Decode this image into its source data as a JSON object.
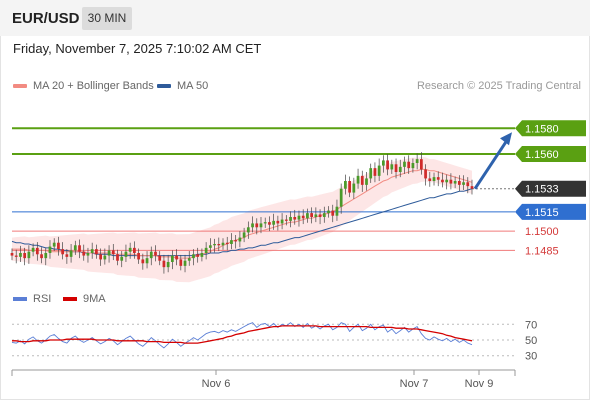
{
  "header": {
    "symbol": "EUR/USD",
    "timeframe": "30 MIN",
    "datetime": "Friday, November 7, 2025 7:10:02 AM CET",
    "credit": "Research © 2025 Trading Central"
  },
  "legend": {
    "ma20": {
      "label": "MA 20 + Bollinger Bands",
      "color": "#f28b82"
    },
    "ma50": {
      "label": "MA 50",
      "color": "#2e5b9a"
    }
  },
  "rsi_legend": {
    "rsi": {
      "label": "RSI",
      "color": "#5b7fd6"
    },
    "ma9": {
      "label": "9MA",
      "color": "#d40000"
    }
  },
  "colors": {
    "resistance": "#5aa012",
    "support_pivot": "#2f6fd0",
    "support": "#f07a7a",
    "last_price": "#333333",
    "arrow": "#2e62ad",
    "candle_up": "#4a9a2a",
    "candle_down": "#d02a2a",
    "band_fill": "#fde3e3"
  },
  "chart_data": [
    {
      "type": "candlestick",
      "title": "EUR/USD",
      "timeframe": "30 MIN",
      "x_ticks": [
        "Nov 6",
        "Nov 7",
        "Nov 9"
      ],
      "ylim": [
        1.1462,
        1.1602
      ],
      "levels": [
        {
          "value": 1.158,
          "label": "1.1580",
          "kind": "resistance"
        },
        {
          "value": 1.156,
          "label": "1.1560",
          "kind": "resistance"
        },
        {
          "value": 1.1533,
          "label": "1.1533",
          "kind": "last_price"
        },
        {
          "value": 1.1515,
          "label": "1.1515",
          "kind": "pivot"
        },
        {
          "value": 1.15,
          "label": "1.1500",
          "kind": "support"
        },
        {
          "value": 1.1485,
          "label": "1.1485",
          "kind": "support"
        }
      ],
      "projection": {
        "from": 1.1533,
        "to": 1.158
      },
      "close": [
        1.1481,
        1.148,
        1.1483,
        1.1479,
        1.1484,
        1.1487,
        1.1482,
        1.1479,
        1.1483,
        1.1488,
        1.1491,
        1.1486,
        1.1482,
        1.148,
        1.1485,
        1.1489,
        1.1484,
        1.1481,
        1.1483,
        1.1486,
        1.1482,
        1.1478,
        1.1481,
        1.1485,
        1.1482,
        1.1477,
        1.148,
        1.1484,
        1.1487,
        1.1483,
        1.1478,
        1.1475,
        1.1479,
        1.1484,
        1.1481,
        1.1477,
        1.1472,
        1.1476,
        1.1481,
        1.1478,
        1.1473,
        1.1477,
        1.1479,
        1.1482,
        1.148,
        1.1483,
        1.1487,
        1.1489,
        1.149,
        1.1489,
        1.1491,
        1.149,
        1.1493,
        1.1492,
        1.1495,
        1.1499,
        1.1503,
        1.1506,
        1.1503,
        1.1506,
        1.1507,
        1.1505,
        1.1508,
        1.1506,
        1.1509,
        1.1508,
        1.1511,
        1.1509,
        1.1512,
        1.151,
        1.1514,
        1.1511,
        1.1513,
        1.1511,
        1.1514,
        1.1516,
        1.1512,
        1.1519,
        1.1533,
        1.1539,
        1.153,
        1.1537,
        1.1543,
        1.1536,
        1.1541,
        1.1549,
        1.1543,
        1.1551,
        1.1555,
        1.1548,
        1.1552,
        1.1546,
        1.155,
        1.1554,
        1.1549,
        1.1553,
        1.1556,
        1.1548,
        1.1541,
        1.1539,
        1.1542,
        1.154,
        1.1538,
        1.154,
        1.1537,
        1.1539,
        1.1536,
        1.1538,
        1.1535,
        1.1533
      ],
      "ma20": [
        1.1486,
        1.1486,
        1.1486,
        1.1486,
        1.1485,
        1.1485,
        1.1485,
        1.1485,
        1.1485,
        1.1484,
        1.1484,
        1.1484,
        1.1484,
        1.1484,
        1.1484,
        1.1484,
        1.1484,
        1.1484,
        1.1483,
        1.1483,
        1.1483,
        1.1483,
        1.1483,
        1.1483,
        1.1483,
        1.1482,
        1.1482,
        1.1482,
        1.1482,
        1.1482,
        1.1481,
        1.1481,
        1.1481,
        1.1481,
        1.1481,
        1.148,
        1.148,
        1.148,
        1.148,
        1.1479,
        1.1479,
        1.1479,
        1.1479,
        1.148,
        1.1481,
        1.1482,
        1.1483,
        1.1484,
        1.1486,
        1.1487,
        1.1489,
        1.149,
        1.1492,
        1.1493,
        1.1494,
        1.1495,
        1.1497,
        1.1498,
        1.1499,
        1.15,
        1.1501,
        1.1502,
        1.1503,
        1.1504,
        1.1505,
        1.1506,
        1.1507,
        1.1507,
        1.1508,
        1.1509,
        1.151,
        1.151,
        1.1511,
        1.1512,
        1.1513,
        1.1514,
        1.1515,
        1.1517,
        1.1519,
        1.1521,
        1.1523,
        1.1525,
        1.1527,
        1.1529,
        1.1531,
        1.1533,
        1.1535,
        1.1537,
        1.1539,
        1.154,
        1.1542,
        1.1543,
        1.1544,
        1.1545,
        1.1546,
        1.1547,
        1.1547,
        1.1548,
        1.1548,
        1.1547,
        1.1547,
        1.1546,
        1.1545,
        1.1544,
        1.1543,
        1.1542,
        1.1541,
        1.154,
        1.1539,
        1.1538
      ],
      "ma50": [
        1.1492,
        1.1491,
        1.1491,
        1.149,
        1.149,
        1.1489,
        1.1489,
        1.1488,
        1.1487,
        1.1487,
        1.1486,
        1.1486,
        1.1485,
        1.1485,
        1.1484,
        1.1484,
        1.1484,
        1.1483,
        1.1483,
        1.1483,
        1.1482,
        1.1482,
        1.1482,
        1.1482,
        1.1481,
        1.1481,
        1.1481,
        1.1481,
        1.1481,
        1.1481,
        1.1481,
        1.1481,
        1.1481,
        1.1481,
        1.1481,
        1.1481,
        1.1481,
        1.1481,
        1.1481,
        1.1481,
        1.1481,
        1.1481,
        1.1481,
        1.1481,
        1.1482,
        1.1482,
        1.1482,
        1.1483,
        1.1483,
        1.1483,
        1.1484,
        1.1484,
        1.1485,
        1.1485,
        1.1486,
        1.1486,
        1.1487,
        1.1487,
        1.1488,
        1.1489,
        1.1489,
        1.149,
        1.1491,
        1.1491,
        1.1492,
        1.1493,
        1.1494,
        1.1495,
        1.1495,
        1.1496,
        1.1497,
        1.1498,
        1.1499,
        1.15,
        1.1501,
        1.1502,
        1.1503,
        1.1504,
        1.1505,
        1.1506,
        1.1507,
        1.1508,
        1.1509,
        1.151,
        1.1511,
        1.1512,
        1.1513,
        1.1514,
        1.1515,
        1.1516,
        1.1517,
        1.1518,
        1.1519,
        1.152,
        1.1521,
        1.1522,
        1.1523,
        1.1524,
        1.1525,
        1.1526,
        1.1526,
        1.1527,
        1.1528,
        1.1529,
        1.1529,
        1.153,
        1.1531,
        1.1531,
        1.1532,
        1.1533
      ]
    },
    {
      "type": "line",
      "title": "RSI",
      "yticks": [
        "70",
        "50",
        "30"
      ],
      "ylim": [
        22,
        78
      ],
      "series": [
        {
          "name": "RSI",
          "values": [
            47,
            46,
            49,
            45,
            51,
            54,
            49,
            46,
            50,
            55,
            57,
            52,
            48,
            46,
            52,
            55,
            50,
            47,
            50,
            53,
            49,
            45,
            48,
            52,
            49,
            44,
            48,
            52,
            55,
            50,
            45,
            42,
            47,
            53,
            49,
            44,
            40,
            45,
            51,
            47,
            42,
            46,
            49,
            53,
            50,
            54,
            58,
            60,
            61,
            59,
            62,
            60,
            63,
            61,
            64,
            67,
            70,
            72,
            66,
            70,
            71,
            67,
            71,
            66,
            70,
            68,
            72,
            67,
            70,
            66,
            71,
            65,
            68,
            64,
            68,
            70,
            63,
            66,
            72,
            70,
            61,
            66,
            70,
            62,
            65,
            70,
            63,
            67,
            69,
            60,
            64,
            58,
            62,
            66,
            60,
            64,
            67,
            58,
            52,
            50,
            54,
            51,
            49,
            52,
            48,
            51,
            47,
            50,
            46,
            44
          ]
        },
        {
          "name": "9MA",
          "values": [
            49,
            49,
            48,
            48,
            48,
            49,
            49,
            49,
            49,
            50,
            50,
            50,
            50,
            51,
            51,
            51,
            51,
            51,
            51,
            51,
            50,
            50,
            50,
            50,
            50,
            49,
            49,
            49,
            49,
            49,
            49,
            49,
            48,
            48,
            48,
            48,
            47,
            47,
            47,
            47,
            47,
            46,
            46,
            46,
            46,
            47,
            48,
            49,
            50,
            51,
            52,
            54,
            55,
            57,
            58,
            59,
            61,
            62,
            63,
            64,
            65,
            66,
            67,
            67,
            68,
            68,
            68,
            68,
            68,
            68,
            68,
            68,
            68,
            67,
            67,
            67,
            67,
            67,
            67,
            67,
            67,
            67,
            67,
            67,
            67,
            66,
            66,
            66,
            66,
            66,
            66,
            65,
            65,
            65,
            64,
            64,
            64,
            63,
            62,
            61,
            60,
            59,
            58,
            56,
            55,
            53,
            52,
            51,
            50,
            49
          ]
        }
      ]
    }
  ]
}
